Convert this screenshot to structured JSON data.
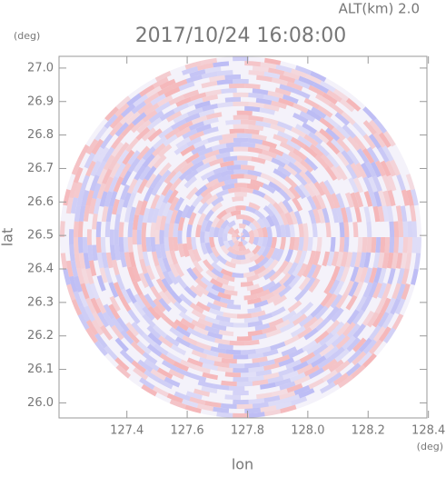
{
  "chart_data": {
    "type": "radar-image",
    "title": "2017/10/24 16:08:00",
    "altitude_label": "ALT(km) 2.0",
    "y_unit": "(deg)",
    "x_unit": "(deg)",
    "xlabel": "lon",
    "ylabel": "lat",
    "xlim": [
      127.175,
      128.395
    ],
    "ylim": [
      25.955,
      27.035
    ],
    "xticks": [
      127.4,
      127.6,
      127.8,
      {
        "value": 128.0,
        "label": "128.0"
      },
      128.2,
      128.4
    ],
    "yticks": [
      {
        "value": 26.0,
        "label": "26.0"
      },
      26.1,
      26.2,
      26.3,
      26.4,
      26.5,
      26.6,
      26.7,
      26.8,
      26.9,
      {
        "value": 27.0,
        "label": "27.0"
      }
    ]
  }
}
